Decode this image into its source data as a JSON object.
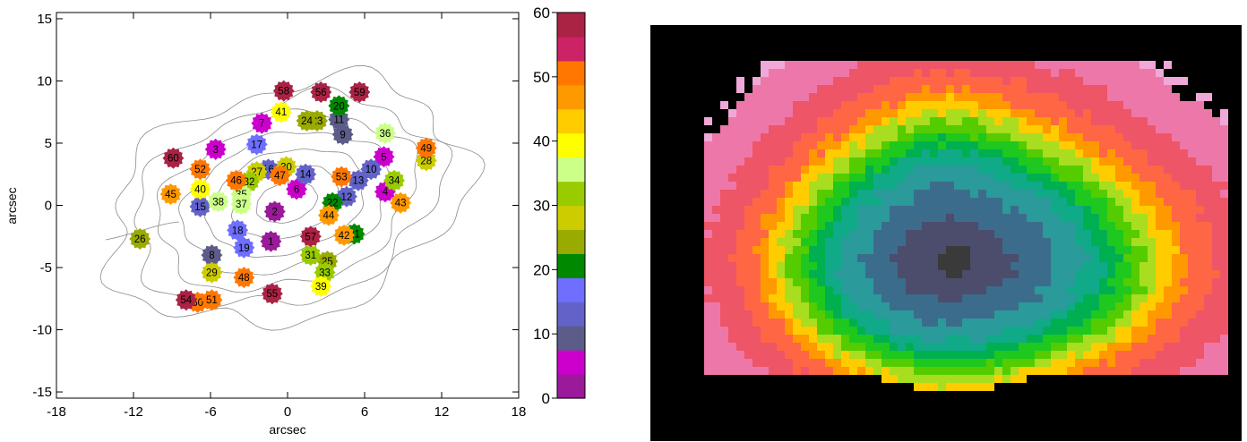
{
  "chart_data": [
    {
      "type": "scatter",
      "title": "",
      "xlabel": "arcsec",
      "ylabel": "arcsec",
      "xlim": [
        -18,
        18
      ],
      "ylim": [
        -15.5,
        15.5
      ],
      "xticks": [
        "-18",
        "-12",
        "-6",
        "0",
        "6",
        "12",
        "18"
      ],
      "yticks": [
        "-15",
        "-10",
        "-5",
        "0",
        "5",
        "10",
        "15"
      ],
      "grid": false,
      "points": [
        {
          "label": "1",
          "x": -1.3,
          "y": -2.9,
          "c": 2
        },
        {
          "label": "2",
          "x": -1.0,
          "y": -0.5,
          "c": 2
        },
        {
          "label": "3",
          "x": -5.6,
          "y": 4.5,
          "c": 7
        },
        {
          "label": "4",
          "x": 7.6,
          "y": 1.1,
          "c": 5
        },
        {
          "label": "5",
          "x": 7.5,
          "y": 3.9,
          "c": 5
        },
        {
          "label": "6",
          "x": 0.7,
          "y": 1.3,
          "c": 5
        },
        {
          "label": "7",
          "x": -2.0,
          "y": 6.6,
          "c": 5
        },
        {
          "label": "8",
          "x": -5.9,
          "y": -4.0,
          "c": 10
        },
        {
          "label": "9",
          "x": 4.3,
          "y": 5.7,
          "c": 10
        },
        {
          "label": "10",
          "x": 6.5,
          "y": 2.9,
          "c": 13
        },
        {
          "label": "11",
          "x": 4.0,
          "y": 6.9,
          "c": 10
        },
        {
          "label": "12",
          "x": 4.6,
          "y": 0.7,
          "c": 13
        },
        {
          "label": "13",
          "x": 5.5,
          "y": 2.0,
          "c": 13
        },
        {
          "label": "14",
          "x": 1.4,
          "y": 2.5,
          "c": 13
        },
        {
          "label": "15",
          "x": -6.8,
          "y": -0.1,
          "c": 13
        },
        {
          "label": "16",
          "x": -1.5,
          "y": 2.9,
          "c": 13
        },
        {
          "label": "17",
          "x": -2.4,
          "y": 4.9,
          "c": 16
        },
        {
          "label": "18",
          "x": -3.9,
          "y": -2.0,
          "c": 16
        },
        {
          "label": "19",
          "x": -3.4,
          "y": -3.4,
          "c": 16
        },
        {
          "label": "20",
          "x": 4.0,
          "y": 8.0,
          "c": 21
        },
        {
          "label": "21",
          "x": 5.2,
          "y": -2.3,
          "c": 21
        },
        {
          "label": "22",
          "x": 3.5,
          "y": 0.2,
          "c": 21
        },
        {
          "label": "23",
          "x": 2.3,
          "y": 6.8,
          "c": 26
        },
        {
          "label": "24",
          "x": 1.5,
          "y": 6.8,
          "c": 26
        },
        {
          "label": "25",
          "x": 3.1,
          "y": -4.5,
          "c": 26
        },
        {
          "label": "26",
          "x": -11.5,
          "y": -2.7,
          "c": 26
        },
        {
          "label": "27",
          "x": -2.4,
          "y": 2.7,
          "c": 29
        },
        {
          "label": "28",
          "x": 10.8,
          "y": 3.6,
          "c": 29
        },
        {
          "label": "29",
          "x": -5.9,
          "y": -5.4,
          "c": 29
        },
        {
          "label": "30",
          "x": -0.1,
          "y": 3.1,
          "c": 29
        },
        {
          "label": "31",
          "x": 1.8,
          "y": -4.0,
          "c": 33
        },
        {
          "label": "32",
          "x": -3.0,
          "y": 1.9,
          "c": 33
        },
        {
          "label": "33",
          "x": 2.9,
          "y": -5.4,
          "c": 33
        },
        {
          "label": "34",
          "x": 8.3,
          "y": 2.0,
          "c": 33
        },
        {
          "label": "35",
          "x": -3.6,
          "y": 0.9,
          "c": 37
        },
        {
          "label": "36",
          "x": 7.6,
          "y": 5.8,
          "c": 37
        },
        {
          "label": "37",
          "x": -3.6,
          "y": 0.1,
          "c": 37
        },
        {
          "label": "38",
          "x": -5.4,
          "y": 0.3,
          "c": 37
        },
        {
          "label": "39",
          "x": 2.6,
          "y": -6.5,
          "c": 41
        },
        {
          "label": "40",
          "x": -6.8,
          "y": 1.3,
          "c": 41
        },
        {
          "label": "41",
          "x": -0.5,
          "y": 7.5,
          "c": 41
        },
        {
          "label": "42",
          "x": 4.4,
          "y": -2.4,
          "c": 45
        },
        {
          "label": "43",
          "x": 8.8,
          "y": 0.2,
          "c": 45
        },
        {
          "label": "44",
          "x": 3.2,
          "y": -0.8,
          "c": 45
        },
        {
          "label": "45",
          "x": -9.1,
          "y": 0.9,
          "c": 45
        },
        {
          "label": "46",
          "x": -4.0,
          "y": 2.0,
          "c": 49
        },
        {
          "label": "47",
          "x": -0.6,
          "y": 2.4,
          "c": 49
        },
        {
          "label": "48",
          "x": -3.4,
          "y": -5.8,
          "c": 49
        },
        {
          "label": "49",
          "x": 10.8,
          "y": 4.6,
          "c": 49
        },
        {
          "label": "50",
          "x": -7.0,
          "y": -7.8,
          "c": 52
        },
        {
          "label": "51",
          "x": -5.9,
          "y": -7.6,
          "c": 52
        },
        {
          "label": "52",
          "x": -6.8,
          "y": 2.9,
          "c": 52
        },
        {
          "label": "53",
          "x": 4.2,
          "y": 2.3,
          "c": 52
        },
        {
          "label": "54",
          "x": -7.9,
          "y": -7.6,
          "c": 58
        },
        {
          "label": "55",
          "x": -1.2,
          "y": -7.1,
          "c": 58
        },
        {
          "label": "56",
          "x": 2.6,
          "y": 9.1,
          "c": 58
        },
        {
          "label": "57",
          "x": 1.8,
          "y": -2.5,
          "c": 58
        },
        {
          "label": "58",
          "x": -0.3,
          "y": 9.2,
          "c": 58
        },
        {
          "label": "59",
          "x": 5.6,
          "y": 9.1,
          "c": 58
        },
        {
          "label": "60",
          "x": -8.9,
          "y": 3.8,
          "c": 58
        }
      ]
    },
    {
      "type": "heatmap",
      "title": "",
      "colorbar": {
        "vmin": 0,
        "vmax": 60,
        "ticks": [
          "0",
          "10",
          "20",
          "30",
          "40",
          "50",
          "60"
        ],
        "colors": [
          "#9a1a9a",
          "#cc00cc",
          "#5c5c88",
          "#6262c8",
          "#6e6eff",
          "#008800",
          "#99aa00",
          "#cccc00",
          "#99cc00",
          "#ccff88",
          "#ffff00",
          "#ffcc00",
          "#ff9900",
          "#ff7700",
          "#cc2266",
          "#aa2244"
        ]
      },
      "background": "#000000"
    }
  ]
}
